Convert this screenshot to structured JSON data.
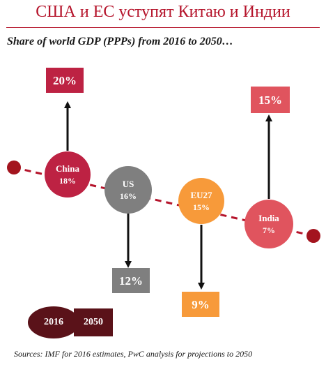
{
  "title": "США и ЕС уступят Китаю и Индии",
  "subtitle": "Share of world GDP (PPPs) from 2016 to 2050…",
  "legend": {
    "start_label": "2016",
    "end_label": "2050"
  },
  "source": "Sources: IMF for 2016 estimates, PwC analysis for projections to 2050",
  "colors": {
    "china": "#bd2243",
    "us": "#7f7f7f",
    "eu": "#f79a3a",
    "india": "#e0545e",
    "china_box": "#bd2243",
    "us_box": "#7f7f7f",
    "eu_box": "#f79a3a",
    "india_box": "#e0545e",
    "trend_line": "#b5142b",
    "dots": "#a3141e",
    "legend": "#5a1219",
    "title": "#b5142b"
  },
  "chart_data": {
    "type": "bubble-change",
    "title": "Share of world GDP (PPPs) from 2016 to 2050…",
    "unit": "%",
    "series": [
      {
        "name": "China",
        "value_2016": 18,
        "label_2016": "18%",
        "value_2050": 20,
        "label_2050": "20%",
        "direction": "up"
      },
      {
        "name": "US",
        "value_2016": 16,
        "label_2016": "16%",
        "value_2050": 12,
        "label_2050": "12%",
        "direction": "down"
      },
      {
        "name": "EU27",
        "value_2016": 15,
        "label_2016": "15%",
        "value_2050": 9,
        "label_2050": "9%",
        "direction": "down"
      },
      {
        "name": "India",
        "value_2016": 7,
        "label_2016": "7%",
        "value_2050": 15,
        "label_2050": "15%",
        "direction": "up"
      }
    ]
  }
}
